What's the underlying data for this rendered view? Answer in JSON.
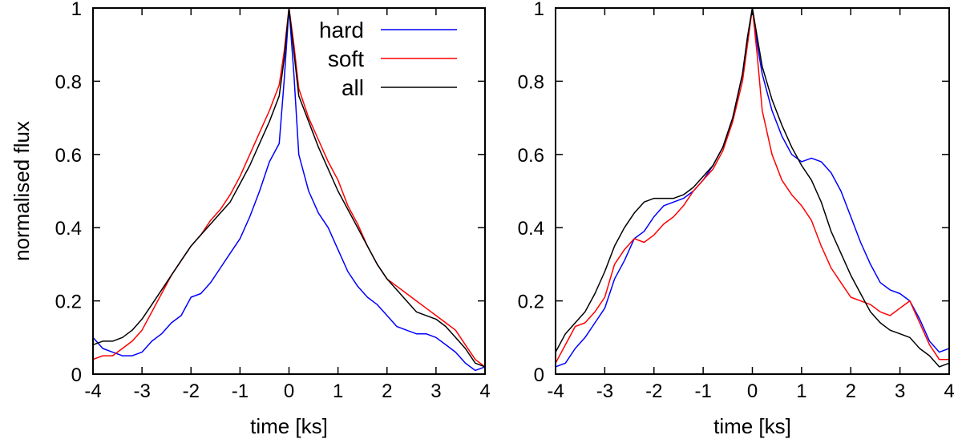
{
  "chart_data": [
    {
      "type": "line",
      "xlabel": "time [ks]",
      "ylabel": "normalised flux",
      "xlim": [
        -4,
        4
      ],
      "ylim": [
        0,
        1
      ],
      "xticks": [
        "-4",
        "-3",
        "-2",
        "-1",
        "0",
        "1",
        "2",
        "3",
        "4"
      ],
      "yticks": [
        "0",
        "0.2",
        "0.4",
        "0.6",
        "0.8",
        "1"
      ],
      "grid": false,
      "legend": "top-right",
      "series": [
        {
          "name": "hard",
          "color": "#0000ff",
          "x": [
            -4,
            -3.8,
            -3.6,
            -3.4,
            -3.2,
            -3,
            -2.8,
            -2.6,
            -2.4,
            -2.2,
            -2,
            -1.8,
            -1.6,
            -1.4,
            -1.2,
            -1,
            -0.8,
            -0.6,
            -0.4,
            -0.2,
            -0.1,
            0,
            0.1,
            0.2,
            0.4,
            0.6,
            0.8,
            1,
            1.2,
            1.4,
            1.6,
            1.8,
            2,
            2.2,
            2.4,
            2.6,
            2.8,
            3,
            3.2,
            3.4,
            3.6,
            3.8,
            4
          ],
          "y": [
            0.1,
            0.07,
            0.06,
            0.05,
            0.05,
            0.06,
            0.09,
            0.11,
            0.14,
            0.16,
            0.21,
            0.22,
            0.25,
            0.29,
            0.33,
            0.37,
            0.43,
            0.5,
            0.58,
            0.63,
            0.8,
            1.0,
            0.82,
            0.6,
            0.5,
            0.44,
            0.4,
            0.34,
            0.28,
            0.24,
            0.21,
            0.19,
            0.16,
            0.13,
            0.12,
            0.11,
            0.11,
            0.1,
            0.08,
            0.06,
            0.03,
            0.01,
            0.02
          ]
        },
        {
          "name": "soft",
          "color": "#ff0000",
          "x": [
            -4,
            -3.8,
            -3.6,
            -3.4,
            -3.2,
            -3,
            -2.8,
            -2.6,
            -2.4,
            -2.2,
            -2,
            -1.8,
            -1.6,
            -1.4,
            -1.2,
            -1,
            -0.8,
            -0.6,
            -0.4,
            -0.2,
            -0.1,
            0,
            0.1,
            0.2,
            0.4,
            0.6,
            0.8,
            1,
            1.2,
            1.4,
            1.6,
            1.8,
            2,
            2.2,
            2.4,
            2.6,
            2.8,
            3,
            3.2,
            3.4,
            3.6,
            3.8,
            4
          ],
          "y": [
            0.04,
            0.05,
            0.05,
            0.07,
            0.09,
            0.12,
            0.17,
            0.22,
            0.27,
            0.31,
            0.35,
            0.38,
            0.42,
            0.45,
            0.49,
            0.54,
            0.6,
            0.66,
            0.72,
            0.79,
            0.88,
            1.0,
            0.9,
            0.78,
            0.7,
            0.64,
            0.58,
            0.53,
            0.46,
            0.41,
            0.35,
            0.3,
            0.26,
            0.24,
            0.22,
            0.2,
            0.18,
            0.16,
            0.14,
            0.12,
            0.08,
            0.04,
            0.02
          ]
        },
        {
          "name": "all",
          "color": "#000000",
          "x": [
            -4,
            -3.8,
            -3.6,
            -3.4,
            -3.2,
            -3,
            -2.8,
            -2.6,
            -2.4,
            -2.2,
            -2,
            -1.8,
            -1.6,
            -1.4,
            -1.2,
            -1,
            -0.8,
            -0.6,
            -0.4,
            -0.2,
            -0.1,
            0,
            0.1,
            0.2,
            0.4,
            0.6,
            0.8,
            1,
            1.2,
            1.4,
            1.6,
            1.8,
            2,
            2.2,
            2.4,
            2.6,
            2.8,
            3,
            3.2,
            3.4,
            3.6,
            3.8,
            4
          ],
          "y": [
            0.08,
            0.09,
            0.09,
            0.1,
            0.12,
            0.15,
            0.19,
            0.23,
            0.27,
            0.31,
            0.35,
            0.38,
            0.41,
            0.44,
            0.47,
            0.52,
            0.57,
            0.63,
            0.69,
            0.76,
            0.86,
            1.0,
            0.88,
            0.76,
            0.69,
            0.62,
            0.56,
            0.5,
            0.45,
            0.4,
            0.35,
            0.3,
            0.26,
            0.23,
            0.2,
            0.17,
            0.16,
            0.15,
            0.13,
            0.1,
            0.07,
            0.03,
            0.02
          ]
        }
      ]
    },
    {
      "type": "line",
      "xlabel": "time [ks]",
      "ylabel": "",
      "xlim": [
        -4,
        4
      ],
      "ylim": [
        0,
        1
      ],
      "xticks": [
        "-4",
        "-3",
        "-2",
        "-1",
        "0",
        "1",
        "2",
        "3",
        "4"
      ],
      "yticks": [
        "0",
        "0.2",
        "0.4",
        "0.6",
        "0.8",
        "1"
      ],
      "grid": false,
      "series": [
        {
          "color": "#0000ff",
          "x": [
            -4,
            -3.8,
            -3.6,
            -3.4,
            -3.2,
            -3,
            -2.8,
            -2.6,
            -2.4,
            -2.2,
            -2,
            -1.8,
            -1.6,
            -1.4,
            -1.2,
            -1,
            -0.8,
            -0.6,
            -0.4,
            -0.2,
            -0.1,
            0,
            0.1,
            0.2,
            0.4,
            0.6,
            0.8,
            1,
            1.2,
            1.4,
            1.6,
            1.8,
            2,
            2.2,
            2.4,
            2.6,
            2.8,
            3,
            3.2,
            3.4,
            3.6,
            3.8,
            4
          ],
          "y": [
            0.02,
            0.03,
            0.07,
            0.1,
            0.14,
            0.18,
            0.26,
            0.31,
            0.37,
            0.39,
            0.43,
            0.46,
            0.47,
            0.48,
            0.5,
            0.53,
            0.57,
            0.62,
            0.7,
            0.82,
            0.92,
            1.0,
            0.9,
            0.82,
            0.72,
            0.65,
            0.6,
            0.58,
            0.59,
            0.58,
            0.55,
            0.5,
            0.43,
            0.36,
            0.3,
            0.25,
            0.23,
            0.22,
            0.2,
            0.15,
            0.09,
            0.06,
            0.07
          ]
        },
        {
          "color": "#ff0000",
          "x": [
            -4,
            -3.8,
            -3.6,
            -3.4,
            -3.2,
            -3,
            -2.8,
            -2.6,
            -2.4,
            -2.2,
            -2,
            -1.8,
            -1.6,
            -1.4,
            -1.2,
            -1,
            -0.8,
            -0.6,
            -0.4,
            -0.2,
            -0.1,
            0,
            0.1,
            0.2,
            0.4,
            0.6,
            0.8,
            1,
            1.2,
            1.4,
            1.6,
            1.8,
            2,
            2.2,
            2.4,
            2.6,
            2.8,
            3,
            3.2,
            3.4,
            3.6,
            3.8,
            4
          ],
          "y": [
            0.03,
            0.08,
            0.13,
            0.14,
            0.17,
            0.21,
            0.3,
            0.34,
            0.37,
            0.36,
            0.38,
            0.41,
            0.43,
            0.46,
            0.5,
            0.53,
            0.56,
            0.61,
            0.69,
            0.8,
            0.9,
            1.0,
            0.87,
            0.72,
            0.6,
            0.53,
            0.49,
            0.46,
            0.42,
            0.35,
            0.29,
            0.25,
            0.21,
            0.2,
            0.19,
            0.17,
            0.16,
            0.18,
            0.2,
            0.14,
            0.08,
            0.04,
            0.04
          ]
        },
        {
          "color": "#000000",
          "x": [
            -4,
            -3.8,
            -3.6,
            -3.4,
            -3.2,
            -3,
            -2.8,
            -2.6,
            -2.4,
            -2.2,
            -2,
            -1.8,
            -1.6,
            -1.4,
            -1.2,
            -1,
            -0.8,
            -0.6,
            -0.4,
            -0.2,
            -0.1,
            0,
            0.1,
            0.2,
            0.4,
            0.6,
            0.8,
            1,
            1.2,
            1.4,
            1.6,
            1.8,
            2,
            2.2,
            2.4,
            2.6,
            2.8,
            3,
            3.2,
            3.4,
            3.6,
            3.8,
            4
          ],
          "y": [
            0.06,
            0.11,
            0.14,
            0.17,
            0.22,
            0.28,
            0.35,
            0.4,
            0.44,
            0.47,
            0.48,
            0.48,
            0.48,
            0.49,
            0.51,
            0.54,
            0.57,
            0.62,
            0.7,
            0.82,
            0.92,
            1.0,
            0.92,
            0.84,
            0.75,
            0.68,
            0.62,
            0.57,
            0.53,
            0.47,
            0.39,
            0.33,
            0.27,
            0.22,
            0.17,
            0.14,
            0.12,
            0.11,
            0.1,
            0.07,
            0.05,
            0.02,
            0.03
          ]
        }
      ]
    }
  ]
}
